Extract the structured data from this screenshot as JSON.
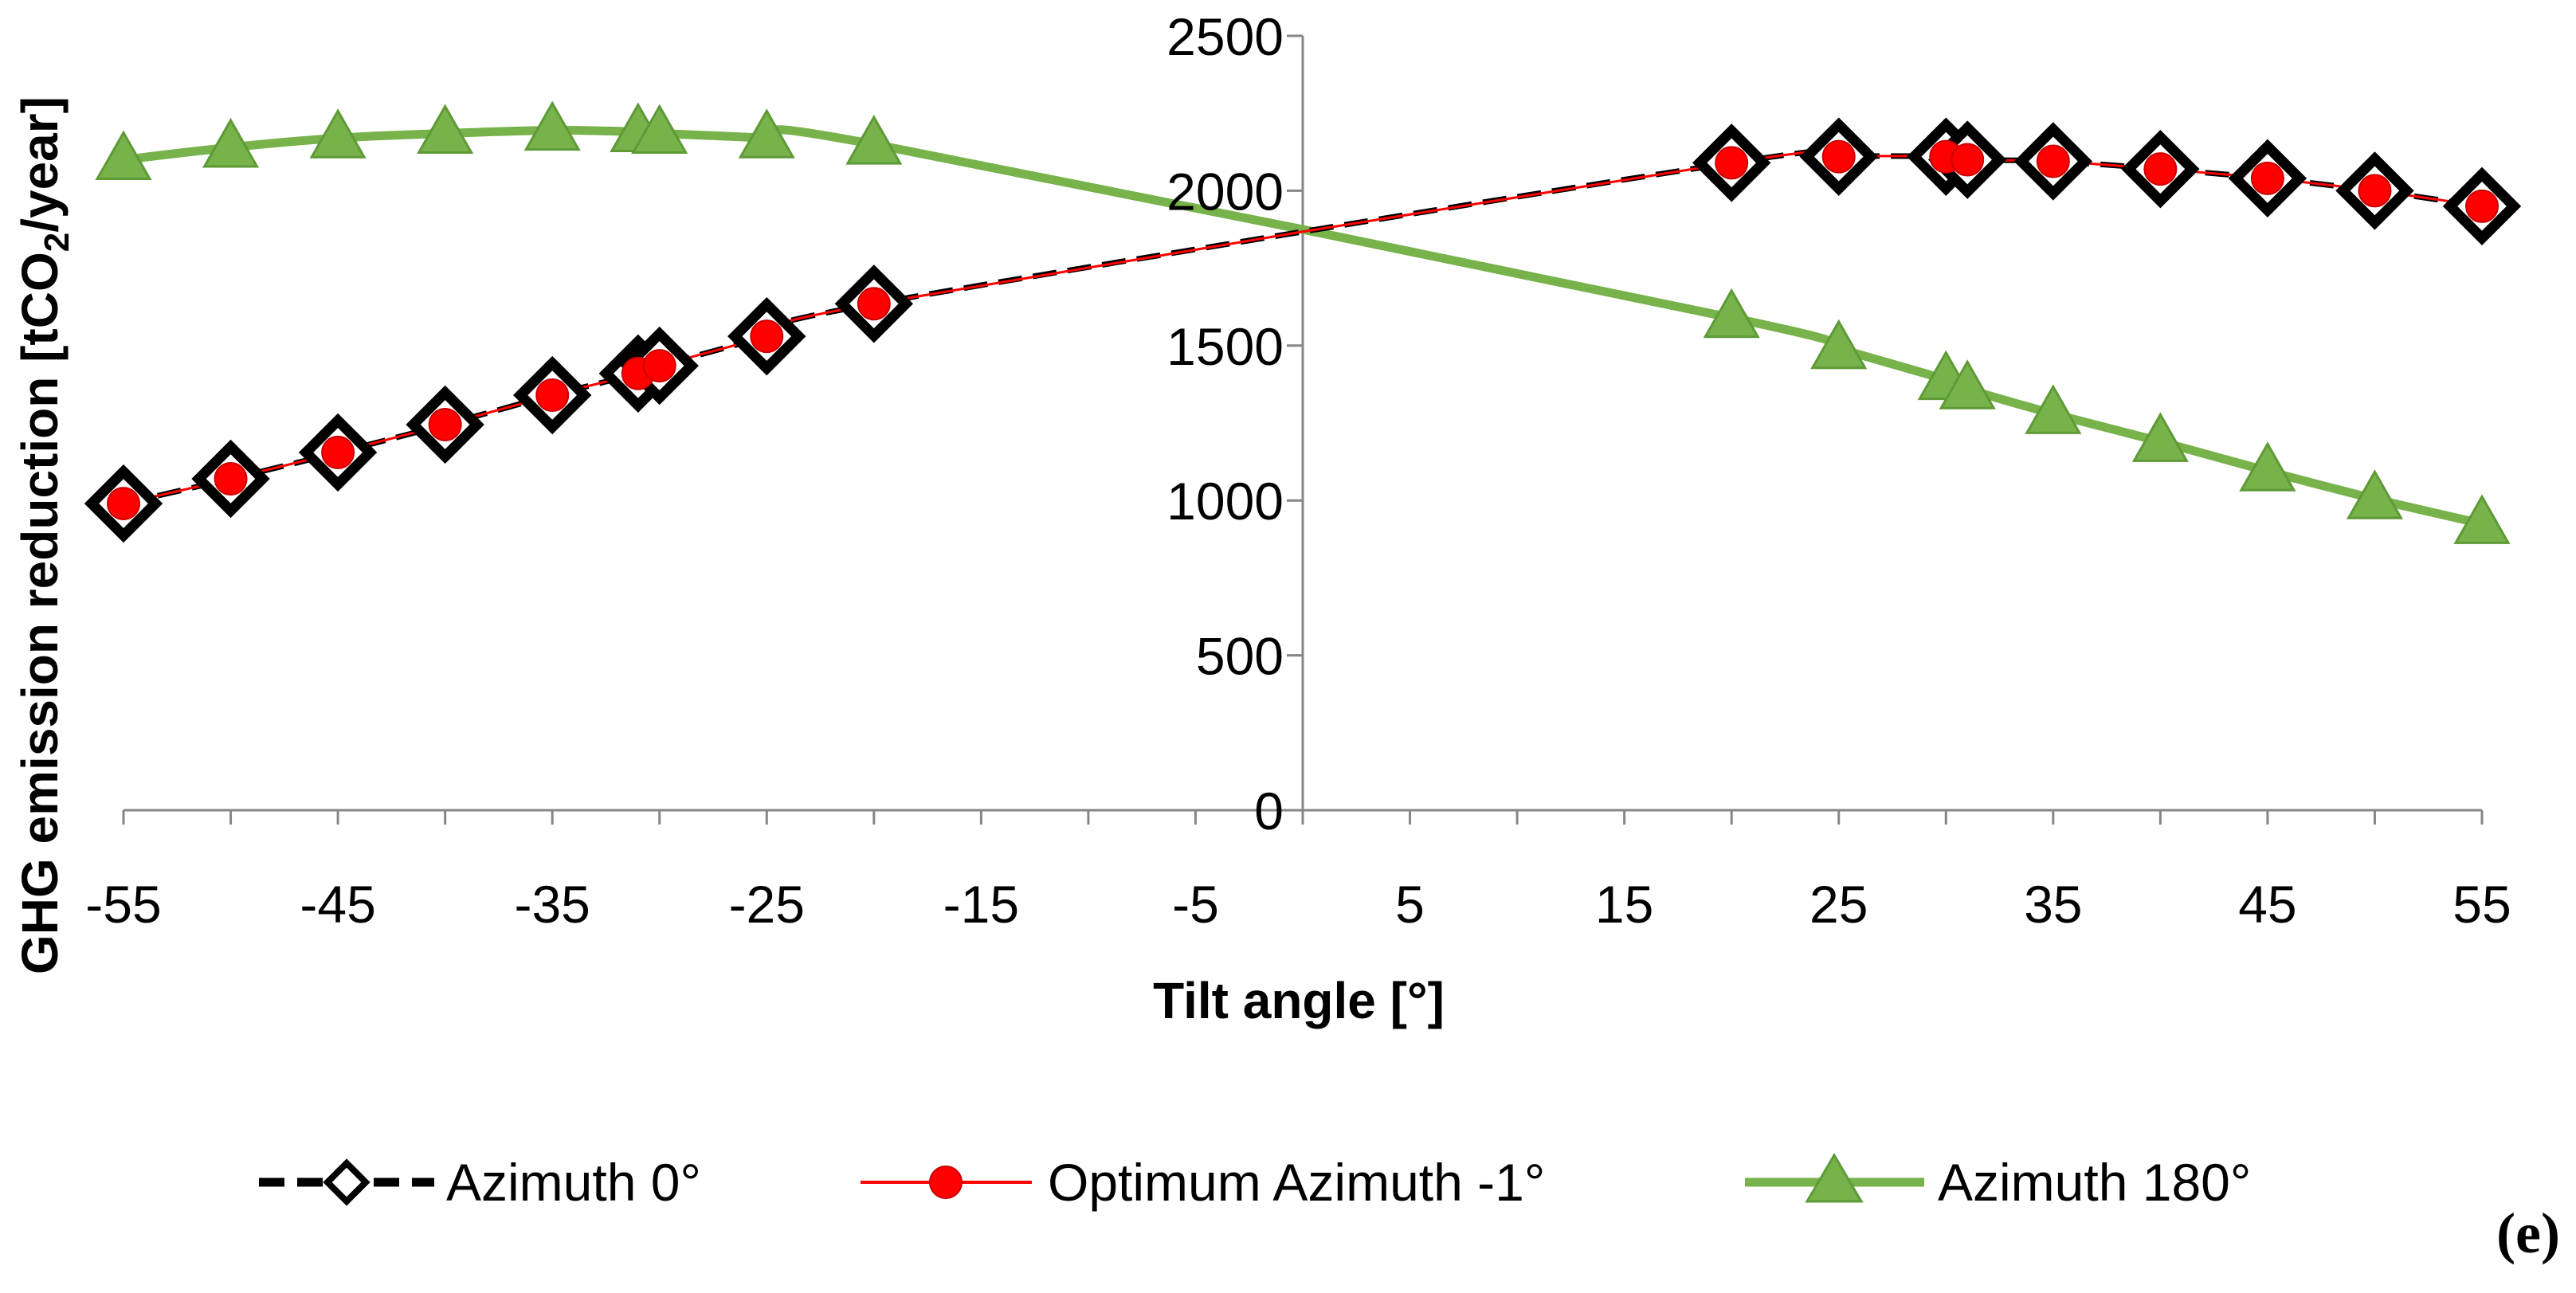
{
  "chart_data": {
    "type": "line",
    "title": "",
    "xlabel": "Tilt angle [°]",
    "ylabel": "GHG emission reduction [tCO",
    "ylabel_subscript": "2",
    "ylabel_suffix": "/year]",
    "xlim": [
      -55,
      55
    ],
    "ylim": [
      0,
      2500
    ],
    "x_ticks": [
      "-55",
      "-45",
      "-35",
      "-25",
      "-15",
      "-5",
      "5",
      "15",
      "25",
      "35",
      "45",
      "55"
    ],
    "y_ticks": [
      "0",
      "500",
      "1000",
      "1500",
      "2000",
      "2500"
    ],
    "panel_label": "(e)",
    "series": [
      {
        "name": "Azimuth 0°",
        "color": "#000000",
        "line_style": "dashed",
        "marker": "diamond",
        "x": [
          -55,
          -50,
          -45,
          -40,
          -35,
          -31,
          -30,
          -25,
          -20,
          20,
          25,
          30,
          31,
          35,
          40,
          45,
          50,
          55
        ],
        "values": [
          990,
          1070,
          1155,
          1245,
          1340,
          1410,
          1435,
          1530,
          1635,
          2090,
          2110,
          2110,
          2100,
          2095,
          2070,
          2040,
          2000,
          1950
        ]
      },
      {
        "name": "Optimum Azimuth -1°",
        "color": "#ff0000",
        "line_style": "solid",
        "marker": "circle",
        "x": [
          -55,
          -50,
          -45,
          -40,
          -35,
          -31,
          -30,
          -25,
          -20,
          20,
          25,
          30,
          31,
          35,
          40,
          45,
          50,
          55
        ],
        "values": [
          990,
          1070,
          1155,
          1245,
          1340,
          1410,
          1435,
          1530,
          1635,
          2090,
          2110,
          2110,
          2100,
          2095,
          2070,
          2040,
          2000,
          1950
        ]
      },
      {
        "name": "Azimuth 180°",
        "color": "#77b24a",
        "line_style": "solid",
        "marker": "triangle",
        "x": [
          -55,
          -50,
          -45,
          -40,
          -35,
          -31,
          -30,
          -25,
          -20,
          20,
          25,
          30,
          31,
          35,
          40,
          45,
          50,
          55
        ],
        "values": [
          2100,
          2140,
          2170,
          2185,
          2195,
          2190,
          2185,
          2170,
          2150,
          1590,
          1490,
          1390,
          1360,
          1280,
          1190,
          1095,
          1005,
          925
        ]
      }
    ]
  }
}
